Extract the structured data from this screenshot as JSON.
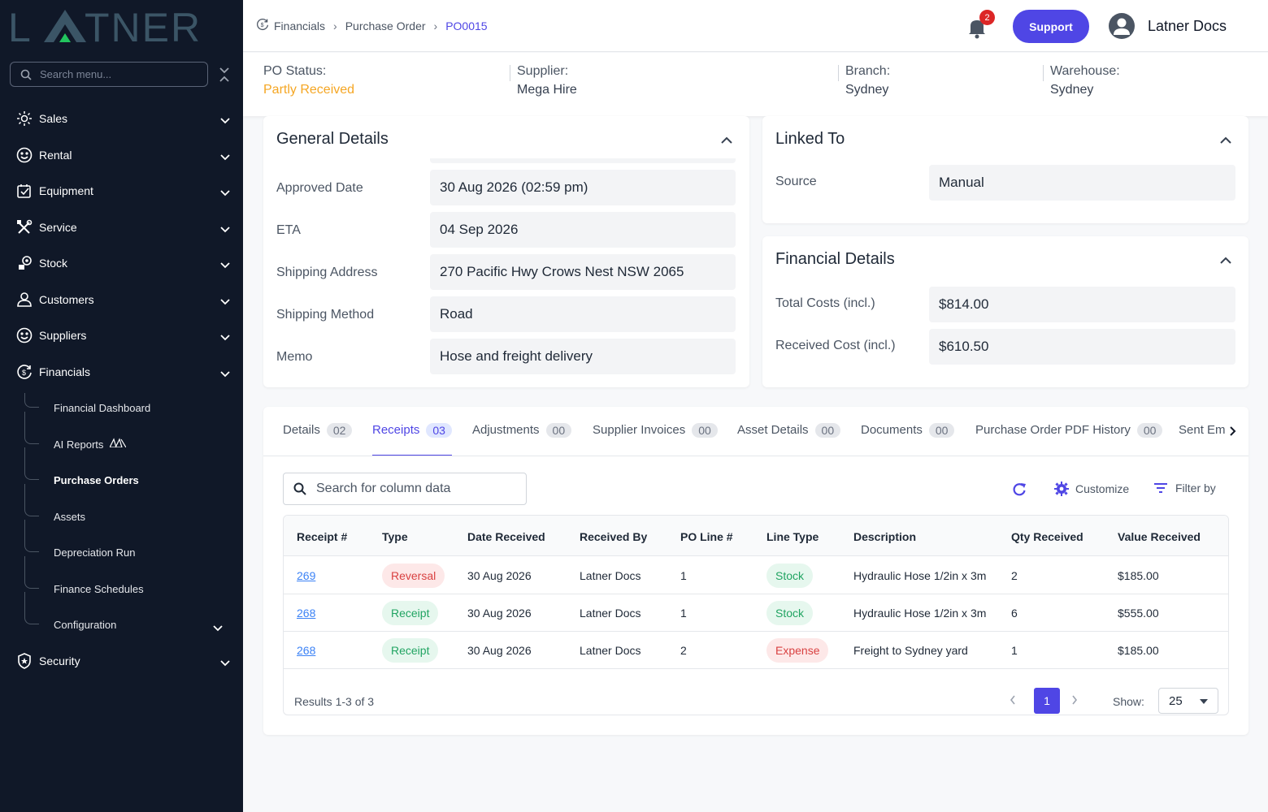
{
  "brand": {
    "logo_text": "LATNER",
    "accent": "#4f46e5"
  },
  "sidebar": {
    "search_placeholder": "Search menu...",
    "items": [
      {
        "label": "Sales",
        "icon": "sales-icon"
      },
      {
        "label": "Rental",
        "icon": "rental-icon"
      },
      {
        "label": "Equipment",
        "icon": "equipment-icon"
      },
      {
        "label": "Service",
        "icon": "service-icon"
      },
      {
        "label": "Stock",
        "icon": "stock-icon"
      },
      {
        "label": "Customers",
        "icon": "user-icon"
      },
      {
        "label": "Suppliers",
        "icon": "suppliers-icon"
      },
      {
        "label": "Financials",
        "icon": "financials-icon"
      },
      {
        "label": "Security",
        "icon": "shield-icon"
      }
    ],
    "financials_sub": [
      {
        "label": "Financial Dashboard"
      },
      {
        "label": "AI Reports"
      },
      {
        "label": "Purchase Orders"
      },
      {
        "label": "Assets"
      },
      {
        "label": "Depreciation Run"
      },
      {
        "label": "Finance Schedules"
      },
      {
        "label": "Configuration"
      }
    ]
  },
  "header": {
    "breadcrumb": [
      "Financials",
      "Purchase Order",
      "PO0015"
    ],
    "notification_count": "2",
    "support_label": "Support",
    "user_name": "Latner Docs"
  },
  "status": {
    "po_status_label": "PO Status:",
    "po_status_value": "Partly Received",
    "supplier_label": "Supplier:",
    "supplier_value": "Mega Hire",
    "branch_label": "Branch:",
    "branch_value": "Sydney",
    "warehouse_label": "Warehouse:",
    "warehouse_value": "Sydney"
  },
  "general": {
    "title": "General Details",
    "rows": [
      {
        "label": "Approved Date",
        "value": "30 Aug 2026 (02:59 pm)"
      },
      {
        "label": "ETA",
        "value": "04 Sep 2026"
      },
      {
        "label": "Shipping Address",
        "value": "270 Pacific Hwy Crows Nest NSW 2065"
      },
      {
        "label": "Shipping Method",
        "value": "Road"
      },
      {
        "label": "Memo",
        "value": "Hose and freight delivery"
      }
    ]
  },
  "linked": {
    "title": "Linked To",
    "source_label": "Source",
    "source_value": "Manual"
  },
  "financial": {
    "title": "Financial Details",
    "total_label": "Total Costs (incl.)",
    "total_value": "$814.00",
    "received_label": "Received Cost (incl.)",
    "received_value": "$610.50"
  },
  "tabs": [
    {
      "label": "Details",
      "count": "02"
    },
    {
      "label": "Receipts",
      "count": "03"
    },
    {
      "label": "Adjustments",
      "count": "00"
    },
    {
      "label": "Supplier Invoices",
      "count": "00"
    },
    {
      "label": "Asset Details",
      "count": "00"
    },
    {
      "label": "Documents",
      "count": "00"
    },
    {
      "label": "Purchase Order PDF History",
      "count": "00"
    },
    {
      "label": "Sent Ema"
    }
  ],
  "toolbar": {
    "search_placeholder": "Search for column data",
    "customize_label": "Customize",
    "filter_label": "Filter by"
  },
  "table": {
    "headers": [
      "Receipt #",
      "Type",
      "Date Received",
      "Received By",
      "PO Line #",
      "Line Type",
      "Description",
      "Qty Received",
      "Value Received"
    ],
    "rows": [
      {
        "receipt": "269",
        "type": "Reversal",
        "date": "30 Aug 2026",
        "by": "Latner Docs",
        "line": "1",
        "line_type": "Stock",
        "desc": "Hydraulic Hose 1/2in x 3m",
        "qty": "2",
        "value": "$185.00"
      },
      {
        "receipt": "268",
        "type": "Receipt",
        "date": "30 Aug 2026",
        "by": "Latner Docs",
        "line": "1",
        "line_type": "Stock",
        "desc": "Hydraulic Hose 1/2in x 3m",
        "qty": "6",
        "value": "$555.00"
      },
      {
        "receipt": "268",
        "type": "Receipt",
        "date": "30 Aug 2026",
        "by": "Latner Docs",
        "line": "2",
        "line_type": "Expense",
        "desc": "Freight to Sydney yard",
        "qty": "1",
        "value": "$185.00"
      }
    ],
    "results_text": "Results 1-3 of 3",
    "current_page": "1",
    "show_label": "Show:",
    "page_size": "25"
  }
}
